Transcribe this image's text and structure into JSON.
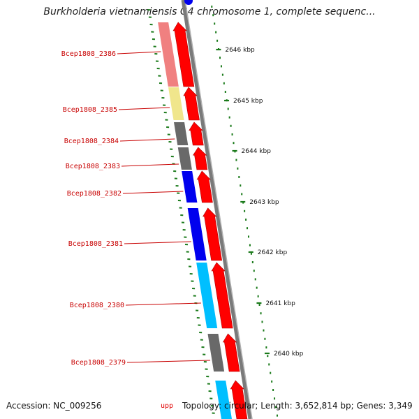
{
  "title": "Burkholderia vietnamiensis G4 chromosome 1, complete sequenc...",
  "footer": {
    "accession": "Accession: NC_009256",
    "partial_gene": "upp",
    "stats": "Topology: circular; Length: 3,652,814 bp; Genes: 3,349"
  },
  "colors": {
    "backbone": "#7a7a7a",
    "arrow": "#ff0000",
    "label": "#c80000",
    "ticks": "#1a7a1a"
  },
  "genes": [
    {
      "id": "Bcep1808_2386",
      "cog_color": "#f08080"
    },
    {
      "id": "Bcep1808_2385",
      "cog_color": "#f0e68c"
    },
    {
      "id": "Bcep1808_2384",
      "cog_color": "#696969"
    },
    {
      "id": "Bcep1808_2383",
      "cog_color": "#696969"
    },
    {
      "id": "Bcep1808_2382",
      "cog_color": "#0000ee"
    },
    {
      "id": "Bcep1808_2381",
      "cog_color": "#0000ee"
    },
    {
      "id": "Bcep1808_2380",
      "cog_color": "#00bfff"
    },
    {
      "id": "Bcep1808_2379",
      "cog_color": "#696969"
    },
    {
      "id": "upp",
      "cog_color": "#00bfff"
    }
  ],
  "kbp_ticks": [
    "2646 kbp",
    "2645 kbp",
    "2644 kbp",
    "2643 kbp",
    "2642 kbp",
    "2641 kbp",
    "2640 kbp"
  ]
}
